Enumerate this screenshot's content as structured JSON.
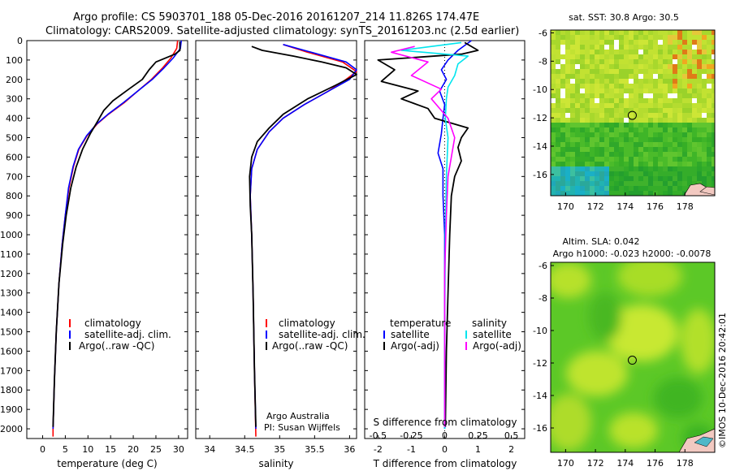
{
  "title": {
    "line1": "Argo profile: CS 5903701_188 05-Dec-2016 20161207_214 11.826S 174.47E",
    "line2": "Climatology: CARS2009. Satellite-adjusted climatology: synTS_20161203.nc (2.5d earlier)"
  },
  "colors": {
    "clim": "#ff0000",
    "sat": "#0000ff",
    "argo": "#000000",
    "sal_sat": "#00e5ee",
    "sal_argo": "#ff00ff",
    "axis": "#000000"
  },
  "depth_axis": {
    "ticks": [
      0,
      100,
      200,
      300,
      400,
      500,
      600,
      700,
      800,
      900,
      1000,
      1100,
      1200,
      1300,
      1400,
      1500,
      1600,
      1700,
      1800,
      1900,
      2000
    ],
    "ylim": [
      0,
      2050
    ]
  },
  "chart_data": [
    {
      "type": "line",
      "name": "temperature",
      "xlabel": "temperature (deg C)",
      "ylabel": "depth",
      "xlim": [
        -3.5,
        32
      ],
      "ylim": [
        0,
        2050
      ],
      "xticks": [
        0,
        5,
        10,
        15,
        20,
        25,
        30
      ],
      "legend": [
        "climatology",
        "satellite-adj. clim.",
        "Argo(..raw -QC)"
      ],
      "series": [
        {
          "name": "climatology",
          "color": "#ff0000",
          "points": [
            [
              29.8,
              0
            ],
            [
              29.6,
              40
            ],
            [
              28.3,
              90
            ],
            [
              26.5,
              140
            ],
            [
              24.0,
              200
            ],
            [
              21.0,
              260
            ],
            [
              18.0,
              320
            ],
            [
              14.5,
              380
            ],
            [
              12.0,
              430
            ],
            [
              9.8,
              490
            ],
            [
              8.0,
              560
            ],
            [
              6.8,
              650
            ],
            [
              5.8,
              760
            ],
            [
              5.0,
              900
            ],
            [
              4.3,
              1050
            ],
            [
              3.6,
              1250
            ],
            [
              3.0,
              1500
            ],
            [
              2.6,
              1750
            ],
            [
              2.3,
              2000
            ],
            [
              2.3,
              2040
            ]
          ]
        },
        {
          "name": "satellite-adj. clim.",
          "color": "#0000ff",
          "points": [
            [
              30.6,
              0
            ],
            [
              30.4,
              40
            ],
            [
              28.8,
              90
            ],
            [
              26.8,
              140
            ],
            [
              24.2,
              200
            ],
            [
              21.0,
              260
            ],
            [
              17.8,
              320
            ],
            [
              14.4,
              380
            ],
            [
              11.9,
              430
            ],
            [
              9.7,
              490
            ],
            [
              7.9,
              560
            ],
            [
              6.7,
              650
            ],
            [
              5.7,
              760
            ],
            [
              5.0,
              900
            ],
            [
              4.3,
              1050
            ],
            [
              3.6,
              1250
            ],
            [
              3.0,
              1500
            ],
            [
              2.6,
              1750
            ],
            [
              2.3,
              2000
            ]
          ]
        },
        {
          "name": "Argo(..raw -QC)",
          "color": "#000000",
          "points": [
            [
              30.3,
              5
            ],
            [
              30.3,
              50
            ],
            [
              29.2,
              70
            ],
            [
              25.0,
              110
            ],
            [
              23.5,
              150
            ],
            [
              22.0,
              200
            ],
            [
              19.0,
              250
            ],
            [
              15.5,
              310
            ],
            [
              13.5,
              360
            ],
            [
              12.0,
              420
            ],
            [
              10.5,
              480
            ],
            [
              8.8,
              560
            ],
            [
              7.4,
              650
            ],
            [
              6.2,
              760
            ],
            [
              5.2,
              900
            ],
            [
              4.4,
              1050
            ],
            [
              3.6,
              1250
            ],
            [
              3.0,
              1500
            ],
            [
              2.6,
              1750
            ],
            [
              2.3,
              1990
            ]
          ]
        }
      ]
    },
    {
      "type": "line",
      "name": "salinity",
      "xlabel": "salinity",
      "xlim": [
        33.8,
        36.1
      ],
      "ylim": [
        0,
        2050
      ],
      "xticks": [
        34,
        34.5,
        35,
        35.5,
        36
      ],
      "legend": [
        "climatology",
        "satellite-adj. clim.",
        "Argo(..raw -QC)"
      ],
      "series": [
        {
          "name": "climatology",
          "color": "#ff0000",
          "points": [
            [
              35.05,
              20
            ],
            [
              35.4,
              60
            ],
            [
              35.9,
              110
            ],
            [
              36.1,
              160
            ],
            [
              35.95,
              200
            ],
            [
              35.7,
              260
            ],
            [
              35.35,
              330
            ],
            [
              35.05,
              400
            ],
            [
              34.85,
              470
            ],
            [
              34.68,
              560
            ],
            [
              34.6,
              660
            ],
            [
              34.58,
              800
            ],
            [
              34.6,
              1000
            ],
            [
              34.62,
              1300
            ],
            [
              34.64,
              1700
            ],
            [
              34.66,
              2040
            ]
          ]
        },
        {
          "name": "satellite-adj. clim.",
          "color": "#0000ff",
          "points": [
            [
              35.05,
              20
            ],
            [
              35.45,
              60
            ],
            [
              35.95,
              110
            ],
            [
              36.1,
              150
            ],
            [
              36.0,
              200
            ],
            [
              35.7,
              260
            ],
            [
              35.35,
              330
            ],
            [
              35.05,
              400
            ],
            [
              34.85,
              470
            ],
            [
              34.68,
              560
            ],
            [
              34.6,
              660
            ],
            [
              34.58,
              800
            ],
            [
              34.6,
              1000
            ],
            [
              34.62,
              1300
            ],
            [
              34.64,
              1700
            ],
            [
              34.66,
              2000
            ]
          ]
        },
        {
          "name": "Argo(..raw -QC)",
          "color": "#000000",
          "points": [
            [
              34.6,
              30
            ],
            [
              34.75,
              50
            ],
            [
              35.2,
              80
            ],
            [
              35.6,
              110
            ],
            [
              35.95,
              140
            ],
            [
              36.1,
              175
            ],
            [
              35.8,
              230
            ],
            [
              35.4,
              300
            ],
            [
              35.05,
              380
            ],
            [
              34.85,
              450
            ],
            [
              34.68,
              520
            ],
            [
              34.6,
              600
            ],
            [
              34.57,
              700
            ],
            [
              34.58,
              850
            ],
            [
              34.6,
              1000
            ],
            [
              34.62,
              1300
            ],
            [
              34.64,
              1700
            ],
            [
              34.66,
              1990
            ]
          ]
        }
      ],
      "annotation": [
        "Argo Australia",
        "PI: Susan Wijffels"
      ]
    },
    {
      "type": "line",
      "name": "differences",
      "xlabel_top": "S difference from climatology",
      "xlabel": "T difference from climatology",
      "xlim": [
        -2.4,
        2.4
      ],
      "ylim": [
        0,
        2050
      ],
      "xticks": [
        -2,
        -1,
        0,
        1,
        2
      ],
      "xticks_top": [
        -0.5,
        -0.25,
        0,
        0.25,
        0.5
      ],
      "legend_titles": [
        "temperature",
        "salinity"
      ],
      "legend": [
        "satellite",
        "Argo(-adj)",
        "satellite",
        "Argo(-adj)"
      ],
      "series": [
        {
          "name": "T satellite",
          "color": "#0000ff",
          "points": [
            [
              0.8,
              0
            ],
            [
              0.4,
              50
            ],
            [
              0.1,
              100
            ],
            [
              -0.1,
              150
            ],
            [
              0.05,
              200
            ],
            [
              -0.15,
              260
            ],
            [
              0.0,
              330
            ],
            [
              -0.05,
              400
            ],
            [
              -0.1,
              480
            ],
            [
              -0.2,
              580
            ],
            [
              -0.05,
              660
            ],
            [
              -0.05,
              800
            ],
            [
              0.0,
              1000
            ],
            [
              0.0,
              1500
            ],
            [
              0.0,
              2000
            ]
          ]
        },
        {
          "name": "T Argo(-adj)",
          "color": "#000000",
          "points": [
            [
              0.6,
              10
            ],
            [
              1.0,
              50
            ],
            [
              0.5,
              70
            ],
            [
              -2.0,
              100
            ],
            [
              -1.5,
              150
            ],
            [
              -1.9,
              210
            ],
            [
              -0.8,
              260
            ],
            [
              -1.3,
              300
            ],
            [
              -0.5,
              350
            ],
            [
              -0.3,
              400
            ],
            [
              0.7,
              450
            ],
            [
              0.5,
              500
            ],
            [
              0.4,
              550
            ],
            [
              0.5,
              620
            ],
            [
              0.3,
              700
            ],
            [
              0.2,
              800
            ],
            [
              0.15,
              1000
            ],
            [
              0.1,
              1300
            ],
            [
              0.05,
              1600
            ],
            [
              0.02,
              1990
            ]
          ]
        },
        {
          "name": "S satellite",
          "color": "#00e5ee",
          "points": [
            [
              0.5,
              10
            ],
            [
              -1.3,
              50
            ],
            [
              0.7,
              80
            ],
            [
              0.4,
              120
            ],
            [
              0.3,
              180
            ],
            [
              0.1,
              240
            ],
            [
              0.05,
              300
            ],
            [
              0.02,
              400
            ],
            [
              0.1,
              500
            ],
            [
              0.05,
              700
            ],
            [
              0.02,
              1000
            ],
            [
              0.0,
              1500
            ],
            [
              0.0,
              2000
            ]
          ]
        },
        {
          "name": "S Argo(-adj)",
          "color": "#ff00ff",
          "points": [
            [
              -0.9,
              30
            ],
            [
              -1.6,
              60
            ],
            [
              -0.5,
              110
            ],
            [
              -1.0,
              180
            ],
            [
              -0.1,
              250
            ],
            [
              -0.4,
              300
            ],
            [
              0.1,
              400
            ],
            [
              0.3,
              500
            ],
            [
              0.2,
              600
            ],
            [
              0.1,
              700
            ],
            [
              0.05,
              900
            ],
            [
              0.0,
              1200
            ],
            [
              0.0,
              1600
            ],
            [
              0.0,
              1990
            ]
          ]
        }
      ]
    }
  ],
  "maps": [
    {
      "name": "sst-map",
      "title": "sat. SST: 30.8  Argo: 30.5",
      "xticks": [
        170,
        172,
        174,
        176,
        178
      ],
      "yticks": [
        -6,
        -8,
        -10,
        -12,
        -14,
        -16
      ],
      "xlim": [
        169,
        180
      ],
      "ylim": [
        -17.5,
        -5.8
      ],
      "marker": [
        174.47,
        -11.826
      ]
    },
    {
      "name": "sla-map",
      "title_line1": "Altim. SLA: 0.042",
      "title_line2": "Argo h1000: -0.023  h2000: -0.0078",
      "xticks": [
        170,
        172,
        174,
        176,
        178
      ],
      "yticks": [
        -6,
        -8,
        -10,
        -12,
        -14,
        -16
      ],
      "xlim": [
        169,
        180
      ],
      "ylim": [
        -17.5,
        -5.8
      ],
      "marker": [
        174.47,
        -11.826
      ]
    }
  ],
  "watermark": "©IMOS 10-Dec-2016 20:42:01"
}
